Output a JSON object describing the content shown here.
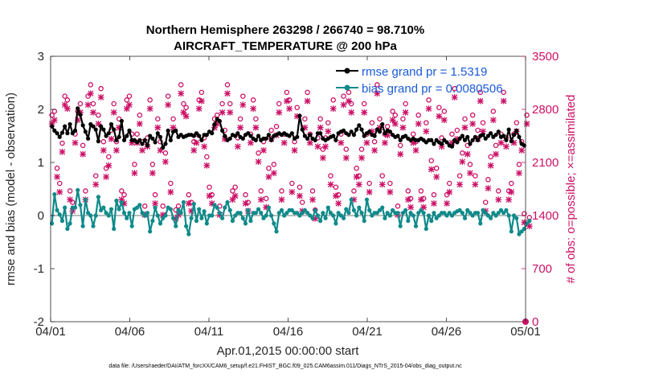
{
  "chart_data": {
    "type": "line",
    "title_line1": "Northern Hemisphere 263298 / 266740 = 98.710%",
    "title_line2": "AIRCRAFT_TEMPERATURE @ 200 hPa",
    "xlabel": "Apr.01,2015 00:00:00 start",
    "ylabel_left": "rmse and bias (model - observation)",
    "ylabel_right": "# of obs: o=possible; ×=assimilated",
    "footnote": "data file: /Users/raeder/DAI/ATM_forcXX/CAM6_setup/f.e21.FHIST_BGC.f09_025.CAM6assim.011/Diags_NTrS_2015-04/obs_diag_output.nc",
    "x_range_days": [
      0,
      30
    ],
    "x_ticks": [
      {
        "day": 0,
        "label": "04/01"
      },
      {
        "day": 5,
        "label": "04/06"
      },
      {
        "day": 10,
        "label": "04/11"
      },
      {
        "day": 15,
        "label": "04/16"
      },
      {
        "day": 20,
        "label": "04/21"
      },
      {
        "day": 25,
        "label": "04/26"
      },
      {
        "day": 30,
        "label": "05/01"
      }
    ],
    "ylim_left": [
      -2,
      3
    ],
    "yticks_left": [
      "-2",
      "-1",
      "0",
      "1",
      "2",
      "3"
    ],
    "ylim_right": [
      0,
      3500
    ],
    "yticks_right": [
      "0",
      "700",
      "1400",
      "2100",
      "2800",
      "3500"
    ],
    "colors": {
      "rmse": "#000000",
      "bias": "#0f8a8a",
      "obs": "#cc1166",
      "zero": "#bbbbbb",
      "legend_text": "#1a5bd6"
    },
    "series": [
      {
        "name": "rmse",
        "legend": "rmse grand pr = 1.5319",
        "values": [
          1.68,
          1.6,
          1.55,
          1.48,
          1.56,
          1.68,
          1.55,
          1.72,
          1.55,
          1.6,
          2.02,
          1.9,
          1.7,
          1.58,
          1.45,
          1.72,
          1.68,
          1.62,
          1.4,
          1.68,
          1.62,
          1.5,
          1.55,
          1.72,
          1.62,
          1.42,
          1.48,
          1.78,
          1.42,
          1.5,
          1.6,
          1.42,
          1.42,
          1.38,
          1.42,
          1.35,
          1.42,
          1.32,
          1.5,
          1.45,
          1.38,
          1.55,
          1.48,
          1.28,
          1.35,
          1.6,
          1.42,
          1.58,
          1.6,
          1.48,
          1.52,
          1.48,
          1.5,
          1.52,
          1.52,
          1.5,
          1.55,
          1.5,
          1.42,
          1.52,
          1.52,
          1.58,
          1.55,
          1.72,
          1.82,
          1.78,
          1.6,
          1.5,
          1.42,
          1.45,
          1.52,
          1.5,
          1.55,
          1.48,
          1.45,
          1.52,
          1.55,
          1.5,
          1.45,
          1.42,
          1.5,
          1.42,
          1.45,
          1.45,
          1.52,
          1.42,
          1.5,
          1.52,
          1.55,
          1.52,
          1.55,
          1.52,
          1.5,
          1.55,
          1.45,
          1.48,
          1.88,
          1.62,
          1.5,
          1.45,
          1.52,
          1.45,
          1.42,
          1.55,
          1.55,
          1.45,
          1.42,
          1.45,
          1.48,
          1.5,
          1.42,
          1.55,
          1.58,
          1.6,
          1.55,
          1.52,
          1.58,
          1.52,
          1.62,
          1.7,
          1.62,
          1.5,
          1.55,
          1.58,
          1.52,
          1.5,
          1.62,
          1.58,
          1.72,
          1.55,
          1.6,
          1.58,
          1.52,
          1.48,
          1.5,
          1.42,
          1.48,
          1.5,
          1.45,
          1.42,
          1.45,
          1.42,
          1.42,
          1.45,
          1.42,
          1.38,
          1.42,
          1.42,
          1.35,
          1.42,
          1.38,
          1.35,
          1.42,
          1.38,
          1.32,
          1.3,
          1.42,
          1.38,
          1.45,
          1.5,
          1.42,
          1.48,
          1.35,
          1.42,
          1.48,
          1.42,
          1.5,
          1.52,
          1.45,
          1.5,
          1.55,
          1.48,
          1.52,
          1.58,
          1.48,
          1.5,
          1.42,
          1.62,
          1.4,
          1.52,
          1.6,
          1.48,
          1.35,
          1.32
        ]
      },
      {
        "name": "bias",
        "legend": "bias grand pr = 0.0080506",
        "values": [
          -0.15,
          0.4,
          0.1,
          0.02,
          -0.1,
          0.15,
          -0.25,
          -0.15,
          0.15,
          0.15,
          0.48,
          0.2,
          -0.2,
          0.3,
          0.05,
          0.0,
          -0.2,
          0.0,
          0.35,
          0.1,
          0.15,
          0.05,
          0.0,
          0.12,
          -0.25,
          0.28,
          0.12,
          0.25,
          0.05,
          -0.05,
          0.05,
          -0.2,
          0.12,
          0.15,
          0.2,
          0.05,
          0.0,
          0.05,
          -0.3,
          -0.1,
          0.15,
          0.0,
          -0.15,
          -0.05,
          0.0,
          0.15,
          0.12,
          -0.05,
          -0.2,
          0.1,
          0.05,
          0.25,
          -0.2,
          -0.35,
          -0.05,
          0.22,
          -0.1,
          0.12,
          -0.05,
          0.08,
          -0.15,
          0.0,
          0.0,
          0.2,
          0.15,
          0.05,
          -0.05,
          0.15,
          0.25,
          0.1,
          -0.1,
          0.0,
          0.05,
          0.05,
          -0.05,
          -0.15,
          0.1,
          -0.1,
          0.05,
          0.05,
          0.12,
          0.05,
          -0.05,
          0.0,
          0.15,
          0.0,
          -0.15,
          -0.3,
          0.05,
          0.1,
          0.0,
          0.05,
          0.1,
          0.1,
          0.05,
          0.05,
          0.0,
          0.05,
          0.1,
          0.05,
          0.0,
          -0.05,
          0.1,
          0.0,
          -0.1,
          0.05,
          -0.05,
          0.15,
          0.05,
          0.0,
          -0.15,
          0.05,
          0.0,
          -0.05,
          0.12,
          0.05,
          0.3,
          0.1,
          0.0,
          0.15,
          0.05,
          -0.1,
          0.3,
          0.1,
          0.0,
          0.05,
          0.05,
          0.1,
          0.15,
          -0.05,
          0.05,
          0.0,
          0.1,
          0.05,
          0.05,
          -0.2,
          0.05,
          0.1,
          -0.1,
          0.05,
          0.0,
          -0.2,
          0.05,
          0.1,
          0.05,
          -0.25,
          0.0,
          -0.1,
          0.05,
          -0.05,
          0.0,
          0.05,
          0.05,
          0.0,
          0.05,
          0.0,
          0.05,
          0.08,
          0.1,
          0.05,
          -0.05,
          0.1,
          0.05,
          0.0,
          0.05,
          0.05,
          -0.15,
          0.1,
          0.05,
          0.0,
          -0.05,
          0.05,
          0.0,
          0.05,
          0.1,
          0.05,
          0.1,
          0.0,
          -0.3,
          0.0,
          -0.05,
          -0.35,
          -0.3,
          -0.25,
          -0.15,
          -0.1
        ]
      },
      {
        "name": "obs_possible",
        "marker": "o",
        "values": [
          2650,
          2700,
          1950,
          1750,
          2280,
          2900,
          2850,
          1650,
          1500,
          2400,
          2700,
          2800,
          2250,
          1650,
          2900,
          3050,
          2800,
          1850,
          2650,
          3000,
          2300,
          1950,
          2100,
          2450,
          2800,
          2300,
          2600,
          1650,
          1600,
          2850,
          2900,
          2400,
          2000,
          2400,
          2650,
          2300,
          1450,
          2350,
          2850,
          2000,
          1600,
          2600,
          2300,
          1450,
          2150,
          2900,
          1750,
          2600,
          1400,
          1450,
          3050,
          2800,
          2750,
          1600,
          1500,
          2300,
          2400,
          2850,
          2950,
          2350,
          2100,
          1700,
          1600,
          2600,
          2650,
          1450,
          2800,
          2450,
          3050,
          2800,
          1650,
          1700,
          2350,
          2600,
          2900,
          1600,
          1500,
          2400,
          2850,
          2600,
          2150,
          1650,
          2300,
          1550,
          1950,
          2450,
          2000,
          2500,
          2800,
          1650,
          2400,
          2950,
          2850,
          1750,
          2300,
          2750,
          1700,
          1500,
          2600,
          2950,
          2400,
          1650,
          1400,
          2350,
          2600,
          2200,
          2350,
          2550,
          1850,
          2850,
          1700,
          1600,
          2400,
          2900,
          2200,
          2950,
          2800,
          1650,
          1950,
          1850,
          2200,
          2800,
          2400,
          1750,
          2550,
          2300,
          3050,
          2600,
          1850,
          2400,
          2500,
          1750,
          2700,
          2650,
          1450,
          2250,
          2600,
          2800,
          1650,
          1550,
          2400,
          2300,
          2650,
          1650,
          1550,
          2550,
          2850,
          2050,
          1600,
          1950,
          2750,
          2350,
          2700,
          1600,
          1750,
          2400,
          3000,
          2450,
          1850,
          2150,
          2600,
          2250,
          2000,
          2650,
          1850,
          2450,
          2950,
          2550,
          1500,
          1800,
          2100,
          2700,
          2250,
          1650,
          2400,
          2950,
          2350,
          1650,
          1750,
          2400,
          2550,
          2000,
          2300,
          1350,
          2650,
          1300
        ]
      },
      {
        "name": "obs_assimilated",
        "marker": "x",
        "values": [
          2620,
          2670,
          1920,
          1720,
          2250,
          2870,
          2820,
          1620,
          1470,
          2370,
          2670,
          2770,
          2220,
          1620,
          2870,
          3020,
          2770,
          1820,
          2620,
          2970,
          2270,
          1920,
          2070,
          2420,
          2770,
          2270,
          2570,
          1620,
          1570,
          2820,
          2870,
          2370,
          1970,
          2370,
          2620,
          2270,
          1420,
          2320,
          2820,
          1970,
          1570,
          2570,
          2270,
          1420,
          2120,
          2870,
          1720,
          2570,
          1370,
          1420,
          3020,
          2770,
          2720,
          1570,
          1470,
          2270,
          2370,
          2820,
          2920,
          2320,
          2070,
          1670,
          1570,
          2570,
          2620,
          1420,
          2770,
          2420,
          3020,
          2770,
          1620,
          1670,
          2320,
          2570,
          2870,
          1570,
          1470,
          2370,
          2820,
          2570,
          2120,
          1620,
          2270,
          1520,
          1920,
          2420,
          1970,
          2470,
          2770,
          1620,
          2370,
          2920,
          2820,
          1720,
          2270,
          2720,
          1670,
          1470,
          2570,
          2920,
          2370,
          1620,
          1370,
          2320,
          2570,
          2170,
          2320,
          2520,
          1820,
          2820,
          1670,
          1570,
          2370,
          2870,
          2170,
          2920,
          2770,
          1620,
          1920,
          1820,
          2170,
          2770,
          2370,
          1720,
          2520,
          2270,
          3020,
          2570,
          1820,
          2370,
          2470,
          1720,
          2670,
          2620,
          1420,
          2220,
          2570,
          2770,
          1620,
          1520,
          2370,
          2270,
          2620,
          1620,
          1520,
          2520,
          2820,
          2020,
          1570,
          1920,
          2720,
          2320,
          2670,
          1570,
          1720,
          2370,
          2970,
          2420,
          1820,
          2120,
          2570,
          2220,
          1970,
          2620,
          1820,
          2420,
          2920,
          2520,
          1470,
          1770,
          2070,
          2670,
          2220,
          1620,
          2370,
          2920,
          2320,
          1620,
          1720,
          2370,
          2520,
          1970,
          2270,
          1320,
          2620,
          1270
        ]
      }
    ]
  }
}
